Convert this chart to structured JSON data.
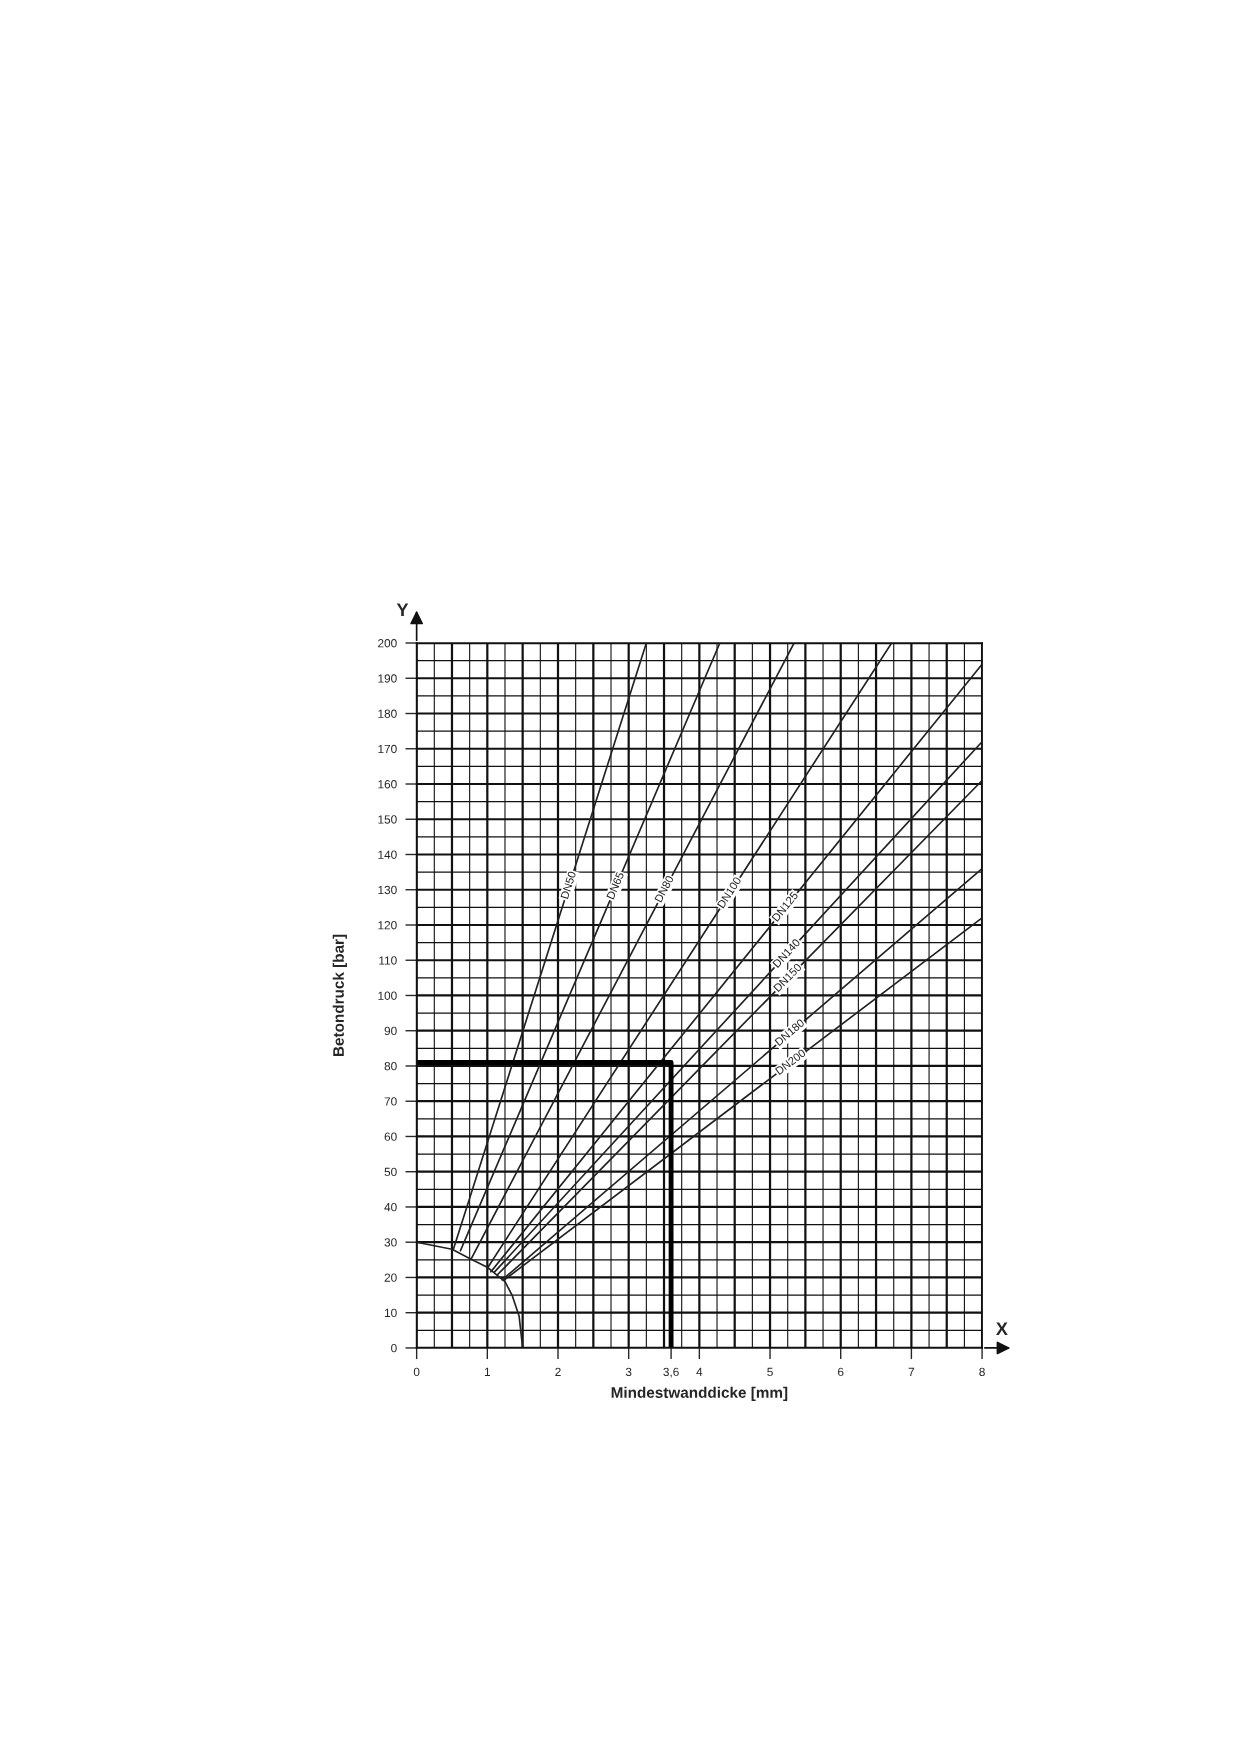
{
  "chart_data": {
    "type": "line",
    "xlabel": "Mindestwanddicke [mm]",
    "ylabel": "Betondruck [bar]",
    "annotations": [
      "X",
      "Y"
    ],
    "xlim": [
      0,
      8
    ],
    "ylim": [
      0,
      200
    ],
    "xticks": [
      0,
      1,
      2,
      3,
      {
        "value": 3.6,
        "label": "3,6"
      },
      4,
      5,
      6,
      7,
      8
    ],
    "yticks": [
      0,
      10,
      20,
      30,
      40,
      50,
      60,
      70,
      80,
      90,
      100,
      110,
      120,
      130,
      140,
      150,
      160,
      170,
      180,
      190,
      200
    ],
    "grid": true,
    "marker": "none",
    "line_style": "solid",
    "series": [
      {
        "name": "DN50",
        "color": "#222222",
        "x": [
          0.52,
          3.25
        ],
        "values": [
          28,
          200
        ]
      },
      {
        "name": "DN65",
        "color": "#222222",
        "x": [
          0.62,
          4.29
        ],
        "values": [
          27.6,
          200
        ]
      },
      {
        "name": "DN80",
        "color": "#222222",
        "x": [
          0.77,
          5.34
        ],
        "values": [
          25.2,
          200
        ]
      },
      {
        "name": "DN100",
        "color": "#222222",
        "x": [
          1.0,
          6.72
        ],
        "values": [
          22.6,
          200
        ]
      },
      {
        "name": "DN125",
        "color": "#222222",
        "x": [
          1.05,
          8
        ],
        "values": [
          21.6,
          194
        ]
      },
      {
        "name": "DN140",
        "color": "#222222",
        "x": [
          1.1,
          8
        ],
        "values": [
          21.5,
          172
        ]
      },
      {
        "name": "DN150",
        "color": "#222222",
        "x": [
          1.14,
          8
        ],
        "values": [
          20.7,
          161
        ]
      },
      {
        "name": "DN180",
        "color": "#222222",
        "x": [
          1.21,
          8
        ],
        "values": [
          19.3,
          136
        ]
      },
      {
        "name": "DN200",
        "color": "#222222",
        "x": [
          1.24,
          8
        ],
        "values": [
          19.3,
          122
        ]
      },
      {
        "color": "#222222",
        "x": [
          0,
          0.5,
          0.75,
          1.0,
          1.25,
          1.35,
          1.45,
          1.5
        ],
        "values": [
          30,
          28,
          25.4,
          22.9,
          18.8,
          15,
          9,
          0
        ]
      },
      {
        "type": "step",
        "color": "#000000",
        "x": [
          0,
          3.6
        ],
        "values": [
          81,
          0
        ]
      }
    ]
  }
}
